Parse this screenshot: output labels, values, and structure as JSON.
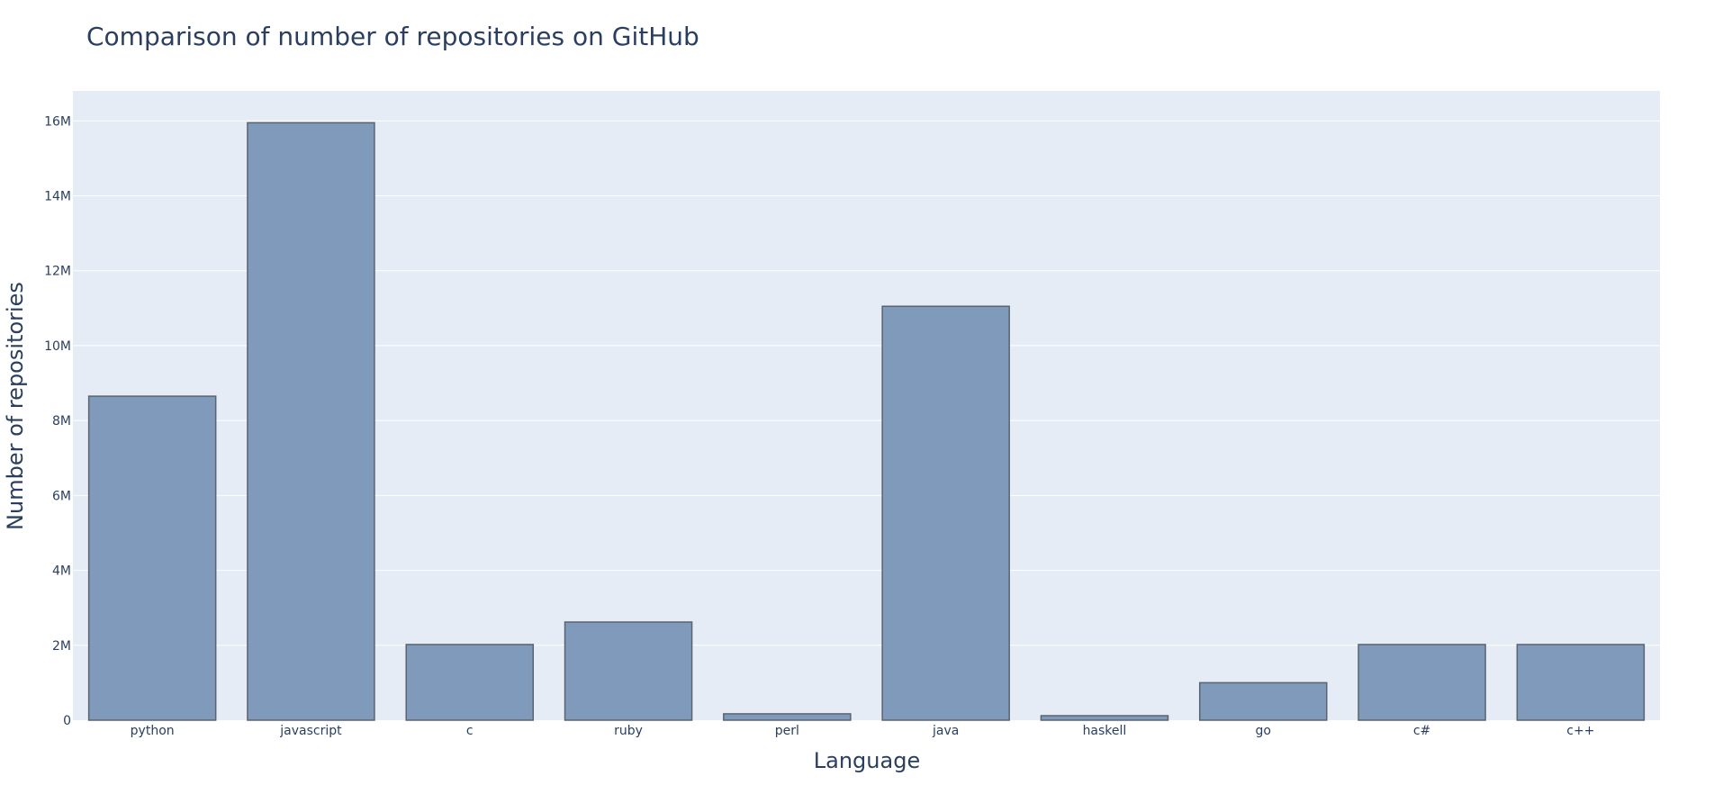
{
  "chart_data": {
    "type": "bar",
    "title": "Comparison of number of repositories on GitHub",
    "xlabel": "Language",
    "ylabel": "Number of repositories",
    "categories": [
      "python",
      "javascript",
      "c",
      "ruby",
      "perl",
      "java",
      "haskell",
      "go",
      "c#",
      "c++"
    ],
    "values": [
      8650000,
      15950000,
      2020000,
      2620000,
      170000,
      11050000,
      120000,
      1000000,
      2020000,
      2020000
    ],
    "ylim": [
      0,
      16800000
    ],
    "yticks": [
      0,
      2000000,
      4000000,
      6000000,
      8000000,
      10000000,
      12000000,
      14000000,
      16000000
    ],
    "ytick_labels": [
      "0",
      "2M",
      "4M",
      "6M",
      "8M",
      "10M",
      "12M",
      "14M",
      "16M"
    ],
    "grid": true,
    "colors": {
      "bar_fill": "#7f9aba",
      "bar_stroke": "#5a6470",
      "plot_bg": "#e5ecf6",
      "grid": "#ffffff",
      "text": "#2a3f5f"
    }
  }
}
